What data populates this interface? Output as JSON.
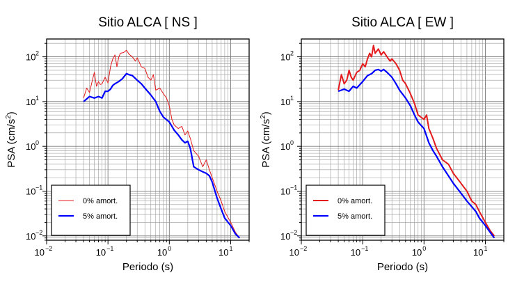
{
  "chart_data": [
    {
      "type": "line",
      "title": "Sitio ALCA [ NS ]",
      "xlabel": "Periodo (s)",
      "ylabel_base": "PSA (cm/s",
      "ylabel_sup": "2",
      "ylabel_end": ")",
      "xscale": "log",
      "yscale": "log",
      "xlim": [
        0.01,
        20
      ],
      "ylim": [
        0.008,
        250
      ],
      "grid": true,
      "legend_position": "bottom-left",
      "x_ticks": [
        {
          "base": "10",
          "exp": "−2",
          "value": 0.01
        },
        {
          "base": "10",
          "exp": "−1",
          "value": 0.1
        },
        {
          "base": "10",
          "exp": "0",
          "value": 1
        },
        {
          "base": "10",
          "exp": "1",
          "value": 10
        }
      ],
      "y_ticks": [
        {
          "base": "10",
          "exp": "−2",
          "value": 0.01
        },
        {
          "base": "10",
          "exp": "−1",
          "value": 0.1
        },
        {
          "base": "10",
          "exp": "0",
          "value": 1
        },
        {
          "base": "10",
          "exp": "1",
          "value": 10
        },
        {
          "base": "10",
          "exp": "2",
          "value": 100
        }
      ],
      "series": [
        {
          "name": "0% amort.",
          "color": "#e41a1c",
          "width": 1.0,
          "x": [
            0.04,
            0.045,
            0.05,
            0.055,
            0.06,
            0.065,
            0.07,
            0.075,
            0.08,
            0.09,
            0.1,
            0.11,
            0.12,
            0.13,
            0.14,
            0.15,
            0.16,
            0.18,
            0.2,
            0.22,
            0.25,
            0.28,
            0.3,
            0.35,
            0.4,
            0.45,
            0.5,
            0.55,
            0.6,
            0.7,
            0.8,
            0.9,
            1.0,
            1.1,
            1.2,
            1.4,
            1.6,
            1.8,
            2.0,
            2.2,
            2.5,
            3.0,
            3.5,
            4.0,
            4.5,
            5.0,
            6.0,
            7.0,
            8.0,
            10.0,
            12.0,
            14.0
          ],
          "y": [
            12,
            20,
            16,
            28,
            45,
            22,
            28,
            24,
            25,
            35,
            26,
            60,
            90,
            110,
            60,
            100,
            120,
            125,
            140,
            115,
            100,
            80,
            95,
            60,
            55,
            35,
            30,
            40,
            18,
            20,
            15,
            12,
            8,
            4,
            3,
            2.5,
            2.8,
            1.8,
            2.2,
            1.5,
            0.8,
            0.6,
            0.35,
            0.5,
            0.3,
            0.2,
            0.1,
            0.06,
            0.035,
            0.02,
            0.012,
            0.009
          ]
        },
        {
          "name": "5% amort.",
          "color": "#0000ff",
          "width": 2.2,
          "x": [
            0.04,
            0.05,
            0.06,
            0.07,
            0.08,
            0.09,
            0.1,
            0.11,
            0.12,
            0.13,
            0.15,
            0.17,
            0.2,
            0.22,
            0.25,
            0.3,
            0.35,
            0.4,
            0.5,
            0.6,
            0.7,
            0.8,
            1.0,
            1.2,
            1.4,
            1.6,
            1.8,
            2.0,
            2.2,
            2.5,
            3.0,
            3.5,
            4.0,
            4.5,
            5.0,
            6.0,
            7.0,
            8.0,
            10.0,
            12.0,
            14.0
          ],
          "y": [
            10,
            13,
            12,
            13,
            12,
            17,
            17,
            19,
            23,
            25,
            28,
            32,
            42,
            40,
            38,
            30,
            25,
            20,
            14,
            10,
            6,
            4.5,
            3.5,
            2.3,
            1.8,
            1.4,
            1.2,
            1.3,
            0.9,
            0.35,
            0.3,
            0.27,
            0.25,
            0.22,
            0.16,
            0.07,
            0.04,
            0.025,
            0.017,
            0.011,
            0.009
          ]
        }
      ]
    },
    {
      "type": "line",
      "title": "Sitio ALCA [ EW ]",
      "xlabel": "Periodo (s)",
      "ylabel_base": "PSA (cm/s",
      "ylabel_sup": "2",
      "ylabel_end": ")",
      "xscale": "log",
      "yscale": "log",
      "xlim": [
        0.01,
        20
      ],
      "ylim": [
        0.008,
        250
      ],
      "grid": true,
      "legend_position": "bottom-left",
      "x_ticks": [
        {
          "base": "10",
          "exp": "−2",
          "value": 0.01
        },
        {
          "base": "10",
          "exp": "−1",
          "value": 0.1
        },
        {
          "base": "10",
          "exp": "0",
          "value": 1
        },
        {
          "base": "10",
          "exp": "1",
          "value": 10
        }
      ],
      "y_ticks": [
        {
          "base": "10",
          "exp": "−2",
          "value": 0.01
        },
        {
          "base": "10",
          "exp": "−1",
          "value": 0.1
        },
        {
          "base": "10",
          "exp": "0",
          "value": 1
        },
        {
          "base": "10",
          "exp": "1",
          "value": 10
        },
        {
          "base": "10",
          "exp": "2",
          "value": 100
        }
      ],
      "series": [
        {
          "name": "0% amort.",
          "color": "#e41a1c",
          "width": 2.0,
          "x": [
            0.04,
            0.045,
            0.05,
            0.055,
            0.06,
            0.065,
            0.07,
            0.08,
            0.09,
            0.1,
            0.11,
            0.12,
            0.13,
            0.14,
            0.15,
            0.16,
            0.18,
            0.2,
            0.22,
            0.25,
            0.28,
            0.3,
            0.35,
            0.4,
            0.45,
            0.5,
            0.6,
            0.7,
            0.8,
            1.0,
            1.1,
            1.2,
            1.4,
            1.6,
            2.0,
            2.5,
            3.0,
            4.0,
            5.0,
            6.0,
            7.0,
            8.0,
            10.0,
            12.0,
            14.0
          ],
          "y": [
            18,
            40,
            25,
            30,
            50,
            35,
            30,
            45,
            50,
            70,
            60,
            90,
            120,
            100,
            180,
            120,
            150,
            110,
            130,
            100,
            80,
            90,
            70,
            50,
            30,
            25,
            15,
            9,
            5,
            4,
            5,
            2.5,
            1.5,
            0.9,
            0.5,
            0.4,
            0.25,
            0.15,
            0.1,
            0.06,
            0.05,
            0.035,
            0.02,
            0.013,
            0.01
          ]
        },
        {
          "name": "5% amort.",
          "color": "#0000ff",
          "width": 2.2,
          "x": [
            0.04,
            0.05,
            0.06,
            0.07,
            0.08,
            0.1,
            0.12,
            0.14,
            0.16,
            0.18,
            0.2,
            0.22,
            0.25,
            0.3,
            0.35,
            0.4,
            0.5,
            0.6,
            0.7,
            0.8,
            1.0,
            1.2,
            1.4,
            1.6,
            2.0,
            2.5,
            3.0,
            4.0,
            5.0,
            6.0,
            7.0,
            8.0,
            10.0,
            12.0,
            14.0
          ],
          "y": [
            17,
            19,
            17,
            22,
            20,
            28,
            38,
            42,
            50,
            52,
            48,
            52,
            45,
            35,
            25,
            18,
            12,
            8,
            5,
            3.5,
            2.5,
            1.2,
            0.8,
            0.6,
            0.35,
            0.22,
            0.15,
            0.09,
            0.06,
            0.045,
            0.035,
            0.025,
            0.017,
            0.012,
            0.009
          ]
        }
      ]
    }
  ]
}
